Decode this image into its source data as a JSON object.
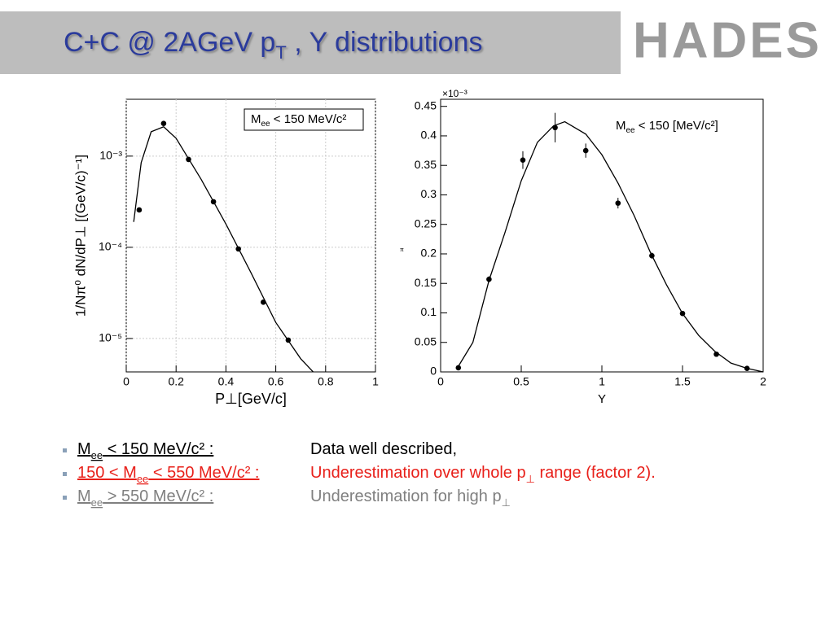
{
  "slide": {
    "title": [
      {
        "text": "C+C @ 2AGeV  p"
      },
      {
        "text": "T",
        "sub": true
      },
      {
        "text": " , Y distributions"
      }
    ],
    "logo": "HADES",
    "bullets": [
      {
        "color": "#000000",
        "label": [
          {
            "text": "M"
          },
          {
            "text": "ee",
            "sub": true
          },
          {
            "text": " < 150 MeV/c² :"
          }
        ],
        "description": [
          {
            "text": "Data well described,"
          }
        ]
      },
      {
        "color": "#e8201a",
        "label": [
          {
            "text": "150 < M"
          },
          {
            "text": "ee",
            "sub": true
          },
          {
            "text": " <  550 MeV/c² :"
          }
        ],
        "description": [
          {
            "text": "Underestimation over whole p"
          },
          {
            "text": "⊥",
            "sub": true
          },
          {
            "text": " range (factor 2)."
          }
        ]
      },
      {
        "color": "#808080",
        "label": [
          {
            "text": "M"
          },
          {
            "text": "ee",
            "sub": true
          },
          {
            "text": " >  550 MeV/c² :"
          }
        ],
        "description": [
          {
            "text": "Underestimation for high p"
          },
          {
            "text": "⊥",
            "sub": true
          }
        ]
      }
    ]
  },
  "chart_data": [
    {
      "type": "scatter",
      "log_y": true,
      "grid": true,
      "x_label": "P⊥[GeV/c]",
      "y_label": "1/Nπ⁰ dN/dP⊥ [(GeV/c)⁻¹]",
      "legend_text": [
        {
          "text": "M"
        },
        {
          "text": "ee",
          "sub": true
        },
        {
          "text": " < 150 MeV/c²"
        }
      ],
      "xlim": [
        0,
        1
      ],
      "xticks": [
        0,
        0.2,
        0.4,
        0.6,
        0.8,
        1
      ],
      "ylim": [
        4.3e-06,
        0.0042
      ],
      "yticks": [
        {
          "value": 1e-05,
          "label": "10⁻⁵"
        },
        {
          "value": 0.0001,
          "label": "10⁻⁴"
        },
        {
          "value": 0.001,
          "label": "10⁻³"
        }
      ],
      "series": [
        {
          "kind": "points",
          "color": "#000000",
          "x": [
            0.052,
            0.15,
            0.25,
            0.35,
            0.45,
            0.55,
            0.65
          ],
          "values": [
            0.000257,
            0.00228,
            0.00092,
            0.000316,
            9.6e-05,
            2.5e-05,
            9.6e-06
          ]
        },
        {
          "kind": "curve",
          "color": "#000000",
          "x": [
            0.03,
            0.06,
            0.1,
            0.15,
            0.2,
            0.3,
            0.4,
            0.5,
            0.6,
            0.7,
            0.75
          ],
          "values": [
            0.00019,
            0.00085,
            0.00185,
            0.0021,
            0.00157,
            0.00056,
            0.00018,
            5.3e-05,
            1.5e-05,
            6e-06,
            4.3e-06
          ]
        }
      ]
    },
    {
      "type": "scatter",
      "log_y": false,
      "grid": false,
      "x_label": "Y",
      "y_label": "π",
      "scale_note": "×10⁻³",
      "legend_text": [
        {
          "text": "M"
        },
        {
          "text": "ee",
          "sub": true
        },
        {
          "text": " < 150 [MeV/c²]"
        }
      ],
      "xlim": [
        0,
        2
      ],
      "xticks": [
        0,
        0.5,
        1,
        1.5,
        2
      ],
      "ylim": [
        0,
        0.462
      ],
      "yticks": [
        0,
        0.05,
        0.1,
        0.15,
        0.2,
        0.25,
        0.3,
        0.35,
        0.4,
        0.45
      ],
      "series": [
        {
          "kind": "points",
          "color": "#000000",
          "x": [
            0.11,
            0.3,
            0.51,
            0.71,
            0.9,
            1.1,
            1.31,
            1.5,
            1.71,
            1.9
          ],
          "values": [
            0.007,
            0.157,
            0.359,
            0.414,
            0.375,
            0.286,
            0.197,
            0.099,
            0.03,
            0.006
          ],
          "errors": [
            0.003,
            0.005,
            0.015,
            0.025,
            0.012,
            0.009,
            0.005,
            0.004,
            0.003,
            0.002
          ]
        },
        {
          "kind": "curve",
          "color": "#000000",
          "x": [
            0.1,
            0.2,
            0.3,
            0.4,
            0.5,
            0.6,
            0.7,
            0.77,
            0.9,
            1,
            1.1,
            1.2,
            1.3,
            1.4,
            1.5,
            1.6,
            1.7,
            1.8,
            1.9,
            2
          ],
          "values": [
            0.005,
            0.05,
            0.155,
            0.237,
            0.324,
            0.389,
            0.417,
            0.424,
            0.403,
            0.368,
            0.32,
            0.265,
            0.203,
            0.148,
            0.099,
            0.062,
            0.035,
            0.015,
            0.006,
            0
          ]
        }
      ]
    }
  ]
}
